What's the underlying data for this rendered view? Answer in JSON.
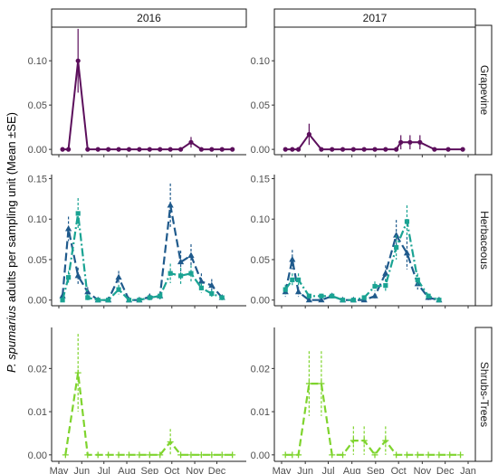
{
  "chart_data": {
    "type": "line",
    "ylabel_italic": "P. spumarius",
    "ylabel_rest": " adults per sampling unit (Mean ±SE)",
    "columns": [
      "2016",
      "2017"
    ],
    "rows": [
      "Grapevine",
      "Herbaceous",
      "Shrubs-Trees"
    ],
    "x_range": [
      "2016-05-01",
      "2016-12-31"
    ],
    "x_ticks": [
      {
        "date": "05-01",
        "label": "May"
      },
      {
        "date": "06-01",
        "label": "Jun"
      },
      {
        "date": "07-01",
        "label": "Jul"
      },
      {
        "date": "08-01",
        "label": "Aug"
      },
      {
        "date": "09-01",
        "label": "Sep"
      },
      {
        "date": "10-01",
        "label": "Oct"
      },
      {
        "date": "11-01",
        "label": "Nov"
      },
      {
        "date": "12-01",
        "label": "Dec"
      },
      {
        "date": "12-31",
        "label": "Jan"
      }
    ],
    "x_tick_labels_2016": [
      "May",
      "Jun",
      "Jul",
      "Aug",
      "Sep",
      "Oct",
      "Nov",
      "Dec"
    ],
    "x_tick_labels_2017": [
      "May",
      "Jun",
      "Jul",
      "Aug",
      "Sep",
      "Oct",
      "Nov",
      "Dec",
      "Jan"
    ],
    "y_axes": {
      "Grapevine": {
        "ylim": [
          -0.006,
          0.14
        ],
        "ticks": [
          0.0,
          0.05,
          0.1
        ],
        "labels": [
          "0.00",
          "0.05",
          "0.10"
        ]
      },
      "Herbaceous": {
        "ylim": [
          -0.007,
          0.155
        ],
        "ticks": [
          0.0,
          0.05,
          0.1,
          0.15
        ],
        "labels": [
          "0.00",
          "0.05",
          "0.10",
          "0.15"
        ]
      },
      "Shrubs-Trees": {
        "ylim": [
          -0.0015,
          0.0295
        ],
        "ticks": [
          0.0,
          0.01,
          0.02
        ],
        "labels": [
          "0.00",
          "0.01",
          "0.02"
        ]
      }
    },
    "panels": [
      {
        "column": "2016",
        "row": "Grapevine",
        "series": [
          {
            "color": "#5c0f5c",
            "dash": "",
            "marker": "circle",
            "points": [
              {
                "date": "05-06",
                "y": 0.0
              },
              {
                "date": "05-14",
                "y": 0.0
              },
              {
                "date": "05-27",
                "y": 0.1,
                "se": 0.036
              },
              {
                "date": "06-09",
                "y": 0.0
              },
              {
                "date": "06-23",
                "y": 0.0
              },
              {
                "date": "07-07",
                "y": 0.0
              },
              {
                "date": "07-21",
                "y": 0.0
              },
              {
                "date": "08-04",
                "y": 0.0
              },
              {
                "date": "08-18",
                "y": 0.0
              },
              {
                "date": "09-01",
                "y": 0.0
              },
              {
                "date": "09-15",
                "y": 0.0
              },
              {
                "date": "09-29",
                "y": 0.0
              },
              {
                "date": "10-13",
                "y": 0.0
              },
              {
                "date": "10-27",
                "y": 0.008,
                "se": 0.006
              },
              {
                "date": "11-10",
                "y": 0.0
              },
              {
                "date": "11-24",
                "y": 0.0
              },
              {
                "date": "12-08",
                "y": 0.0
              },
              {
                "date": "12-22",
                "y": 0.0
              }
            ]
          }
        ]
      },
      {
        "column": "2017",
        "row": "Grapevine",
        "series": [
          {
            "color": "#5c0f5c",
            "dash": "",
            "marker": "circle",
            "points": [
              {
                "date": "05-06",
                "y": 0.0
              },
              {
                "date": "05-15",
                "y": 0.0
              },
              {
                "date": "05-23",
                "y": 0.0
              },
              {
                "date": "06-06",
                "y": 0.017,
                "se": 0.012
              },
              {
                "date": "06-22",
                "y": 0.0
              },
              {
                "date": "07-06",
                "y": 0.0
              },
              {
                "date": "07-20",
                "y": 0.0
              },
              {
                "date": "08-03",
                "y": 0.0
              },
              {
                "date": "08-17",
                "y": 0.0
              },
              {
                "date": "08-31",
                "y": 0.0
              },
              {
                "date": "09-14",
                "y": 0.0
              },
              {
                "date": "09-28",
                "y": 0.0
              },
              {
                "date": "10-04",
                "y": 0.008,
                "se": 0.008
              },
              {
                "date": "10-16",
                "y": 0.008,
                "se": 0.008
              },
              {
                "date": "10-29",
                "y": 0.008,
                "se": 0.008
              },
              {
                "date": "11-17",
                "y": 0.0
              },
              {
                "date": "12-05",
                "y": 0.0
              },
              {
                "date": "12-24",
                "y": 0.0
              }
            ]
          }
        ]
      },
      {
        "column": "2016",
        "row": "Herbaceous",
        "series": [
          {
            "color": "#1f5a8c",
            "dash": "9,4",
            "marker": "triangle",
            "points": [
              {
                "date": "05-06",
                "y": 0.005,
                "se": 0.004
              },
              {
                "date": "05-14",
                "y": 0.088,
                "se": 0.015
              },
              {
                "date": "05-27",
                "y": 0.03,
                "se": 0.01
              },
              {
                "date": "06-09",
                "y": 0.01,
                "se": 0.006
              },
              {
                "date": "06-23",
                "y": 0.0
              },
              {
                "date": "07-07",
                "y": 0.0
              },
              {
                "date": "07-21",
                "y": 0.028,
                "se": 0.008
              },
              {
                "date": "08-04",
                "y": 0.0
              },
              {
                "date": "08-18",
                "y": 0.0
              },
              {
                "date": "09-01",
                "y": 0.004,
                "se": 0.004
              },
              {
                "date": "09-15",
                "y": 0.005,
                "se": 0.004
              },
              {
                "date": "09-29",
                "y": 0.117,
                "se": 0.027
              },
              {
                "date": "10-13",
                "y": 0.047,
                "se": 0.014
              },
              {
                "date": "10-27",
                "y": 0.055,
                "se": 0.014
              },
              {
                "date": "11-10",
                "y": 0.023,
                "se": 0.01
              },
              {
                "date": "11-24",
                "y": 0.018,
                "se": 0.008
              },
              {
                "date": "12-08",
                "y": 0.003,
                "se": 0.003
              }
            ]
          },
          {
            "color": "#1aa393",
            "dash": "9,3,2,3",
            "marker": "square",
            "points": [
              {
                "date": "05-06",
                "y": 0.0
              },
              {
                "date": "05-14",
                "y": 0.028,
                "se": 0.008
              },
              {
                "date": "05-27",
                "y": 0.107,
                "se": 0.019
              },
              {
                "date": "06-09",
                "y": 0.003,
                "se": 0.003
              },
              {
                "date": "06-23",
                "y": 0.0
              },
              {
                "date": "07-07",
                "y": 0.0
              },
              {
                "date": "07-21",
                "y": 0.013,
                "se": 0.006
              },
              {
                "date": "08-04",
                "y": 0.0
              },
              {
                "date": "08-18",
                "y": 0.0
              },
              {
                "date": "09-01",
                "y": 0.003,
                "se": 0.003
              },
              {
                "date": "09-15",
                "y": 0.005,
                "se": 0.004
              },
              {
                "date": "09-29",
                "y": 0.033,
                "se": 0.012
              },
              {
                "date": "10-13",
                "y": 0.03,
                "se": 0.01
              },
              {
                "date": "10-27",
                "y": 0.033,
                "se": 0.01
              },
              {
                "date": "11-10",
                "y": 0.015,
                "se": 0.006
              },
              {
                "date": "11-24",
                "y": 0.008,
                "se": 0.005
              },
              {
                "date": "12-08",
                "y": 0.003,
                "se": 0.003
              }
            ]
          }
        ]
      },
      {
        "column": "2017",
        "row": "Herbaceous",
        "series": [
          {
            "color": "#1f5a8c",
            "dash": "9,4",
            "marker": "triangle",
            "points": [
              {
                "date": "05-06",
                "y": 0.01,
                "se": 0.006
              },
              {
                "date": "05-15",
                "y": 0.05,
                "se": 0.012
              },
              {
                "date": "05-23",
                "y": 0.01,
                "se": 0.006
              },
              {
                "date": "06-06",
                "y": 0.0
              },
              {
                "date": "06-22",
                "y": 0.0
              },
              {
                "date": "07-06",
                "y": 0.005,
                "se": 0.003
              },
              {
                "date": "07-20",
                "y": 0.0
              },
              {
                "date": "08-03",
                "y": 0.0
              },
              {
                "date": "08-17",
                "y": 0.0
              },
              {
                "date": "08-31",
                "y": 0.005,
                "se": 0.003
              },
              {
                "date": "09-14",
                "y": 0.033,
                "se": 0.01
              },
              {
                "date": "09-28",
                "y": 0.08,
                "se": 0.019
              },
              {
                "date": "10-12",
                "y": 0.058,
                "se": 0.02
              },
              {
                "date": "10-26",
                "y": 0.02,
                "se": 0.007
              },
              {
                "date": "11-09",
                "y": 0.003,
                "se": 0.003
              },
              {
                "date": "11-23",
                "y": 0.0
              }
            ]
          },
          {
            "color": "#1aa393",
            "dash": "9,3,2,3",
            "marker": "square",
            "points": [
              {
                "date": "05-06",
                "y": 0.013,
                "se": 0.006
              },
              {
                "date": "05-15",
                "y": 0.025,
                "se": 0.008
              },
              {
                "date": "05-23",
                "y": 0.025,
                "se": 0.008
              },
              {
                "date": "06-06",
                "y": 0.005,
                "se": 0.003
              },
              {
                "date": "06-22",
                "y": 0.005,
                "se": 0.003
              },
              {
                "date": "07-06",
                "y": 0.005,
                "se": 0.003
              },
              {
                "date": "07-20",
                "y": 0.0
              },
              {
                "date": "08-03",
                "y": 0.0
              },
              {
                "date": "08-17",
                "y": 0.003,
                "se": 0.003
              },
              {
                "date": "08-31",
                "y": 0.017,
                "se": 0.006
              },
              {
                "date": "09-14",
                "y": 0.018,
                "se": 0.008
              },
              {
                "date": "09-28",
                "y": 0.065,
                "se": 0.015
              },
              {
                "date": "10-12",
                "y": 0.097,
                "se": 0.02
              },
              {
                "date": "10-26",
                "y": 0.025,
                "se": 0.008
              },
              {
                "date": "11-09",
                "y": 0.005,
                "se": 0.003
              },
              {
                "date": "11-23",
                "y": 0.0
              }
            ]
          }
        ]
      },
      {
        "column": "2016",
        "row": "Shrubs-Trees",
        "series": [
          {
            "color": "#7fd42e",
            "dash": "8,4",
            "marker": "plus",
            "points": [
              {
                "date": "05-10",
                "y": 0.0
              },
              {
                "date": "05-27",
                "y": 0.019,
                "se": 0.009
              },
              {
                "date": "06-09",
                "y": 0.0
              },
              {
                "date": "06-23",
                "y": 0.0
              },
              {
                "date": "07-07",
                "y": 0.0
              },
              {
                "date": "07-21",
                "y": 0.0
              },
              {
                "date": "08-04",
                "y": 0.0
              },
              {
                "date": "08-18",
                "y": 0.0
              },
              {
                "date": "09-01",
                "y": 0.0
              },
              {
                "date": "09-15",
                "y": 0.0
              },
              {
                "date": "09-29",
                "y": 0.003,
                "se": 0.003
              },
              {
                "date": "10-13",
                "y": 0.0
              },
              {
                "date": "10-27",
                "y": 0.0
              },
              {
                "date": "11-10",
                "y": 0.0
              },
              {
                "date": "11-24",
                "y": 0.0
              },
              {
                "date": "12-08",
                "y": 0.0
              },
              {
                "date": "12-22",
                "y": 0.0
              }
            ]
          }
        ]
      },
      {
        "column": "2017",
        "row": "Shrubs-Trees",
        "series": [
          {
            "color": "#7fd42e",
            "dash": "8,4",
            "marker": "plus",
            "points": [
              {
                "date": "05-06",
                "y": 0.0
              },
              {
                "date": "05-15",
                "y": 0.0
              },
              {
                "date": "05-23",
                "y": 0.0
              },
              {
                "date": "06-06",
                "y": 0.0165,
                "se": 0.0075
              },
              {
                "date": "06-22",
                "y": 0.0165,
                "se": 0.0075
              },
              {
                "date": "07-06",
                "y": 0.0
              },
              {
                "date": "07-20",
                "y": 0.0
              },
              {
                "date": "08-03",
                "y": 0.0033,
                "se": 0.0033
              },
              {
                "date": "08-17",
                "y": 0.0033,
                "se": 0.0033
              },
              {
                "date": "08-31",
                "y": 0.0
              },
              {
                "date": "09-14",
                "y": 0.0033,
                "se": 0.0033
              },
              {
                "date": "09-28",
                "y": 0.0
              },
              {
                "date": "10-12",
                "y": 0.0
              },
              {
                "date": "10-26",
                "y": 0.0
              },
              {
                "date": "11-09",
                "y": 0.0
              },
              {
                "date": "11-23",
                "y": 0.0
              },
              {
                "date": "12-07",
                "y": 0.0
              },
              {
                "date": "12-21",
                "y": 0.0
              }
            ]
          }
        ]
      }
    ]
  }
}
